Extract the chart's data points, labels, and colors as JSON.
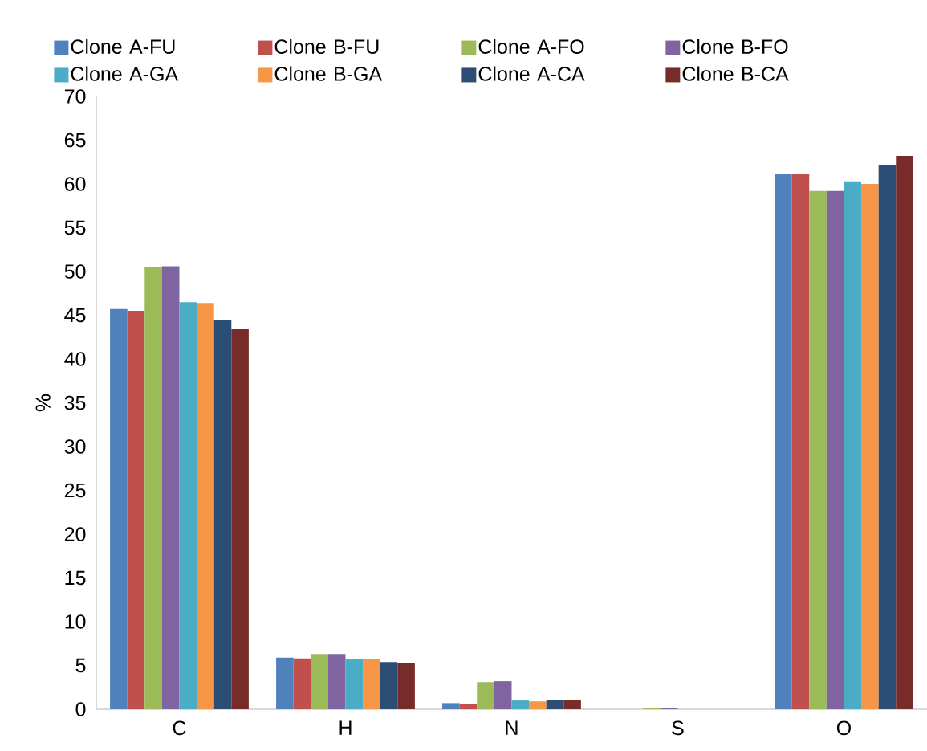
{
  "chart_data": {
    "type": "bar",
    "ylabel": "%",
    "categories": [
      "C",
      "H",
      "N",
      "S",
      "O"
    ],
    "ylim": [
      0,
      70
    ],
    "yticks": [
      0,
      5,
      10,
      15,
      20,
      25,
      30,
      35,
      40,
      45,
      50,
      55,
      60,
      65,
      70
    ],
    "legend": "top",
    "series": [
      {
        "name": "Clone A-FU",
        "color": "#4f81bd",
        "values": [
          45.7,
          5.9,
          0.7,
          0,
          61.1
        ]
      },
      {
        "name": "Clone B-FU",
        "color": "#c0504d",
        "values": [
          45.5,
          5.8,
          0.6,
          0,
          61.1
        ]
      },
      {
        "name": "Clone A-FO",
        "color": "#9bbb59",
        "values": [
          50.5,
          6.3,
          3.1,
          0.1,
          59.2
        ]
      },
      {
        "name": "Clone B-FO",
        "color": "#8064a2",
        "values": [
          50.6,
          6.3,
          3.2,
          0.1,
          59.2
        ]
      },
      {
        "name": "Clone A-GA",
        "color": "#4bacc6",
        "values": [
          46.5,
          5.7,
          1.0,
          0,
          60.3
        ]
      },
      {
        "name": "Clone B-GA",
        "color": "#f79646",
        "values": [
          46.4,
          5.7,
          0.9,
          0,
          60.0
        ]
      },
      {
        "name": "Clone A-CA",
        "color": "#2c4d75",
        "values": [
          44.4,
          5.4,
          1.1,
          0,
          62.2
        ]
      },
      {
        "name": "Clone B-CA",
        "color": "#772c2a",
        "values": [
          43.4,
          5.3,
          1.1,
          0,
          63.2
        ]
      }
    ]
  }
}
